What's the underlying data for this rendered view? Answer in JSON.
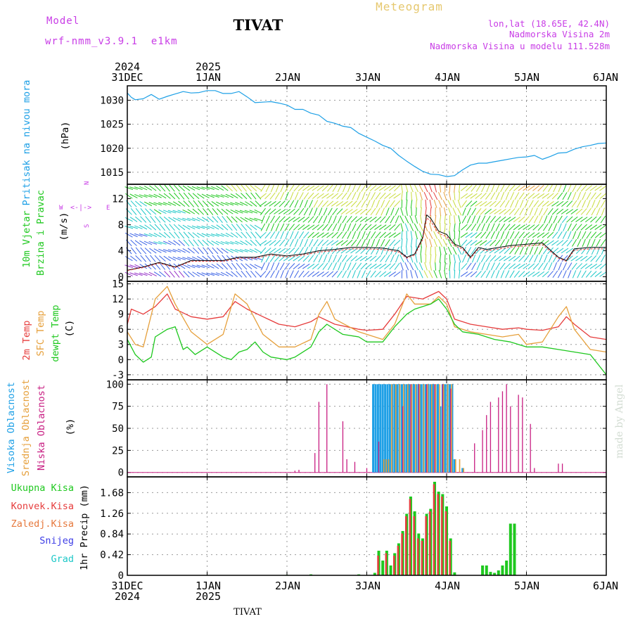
{
  "header": {
    "model_label": "Model",
    "model_name": "wrf-nmm_v3.9.1  e1km",
    "station": "TIVAT",
    "title": "Meteogram",
    "coords": "lon,lat (18.65E, 42.4N)",
    "altitude": "Nadmorska Visina 2m",
    "model_altitude": "Nadmorska Visina u modelu 111.528m",
    "footer_station": "TIVAT",
    "credit": "made by Angel"
  },
  "time_axis": {
    "ticks": [
      "31DEC",
      "1JAN",
      "2JAN",
      "3JAN",
      "4JAN",
      "5JAN",
      "6JAN"
    ],
    "years": [
      {
        "label": "2024",
        "tick": "31DEC"
      },
      {
        "label": "2025",
        "tick": "1JAN"
      }
    ]
  },
  "colors": {
    "pressure": "#1ea0e6",
    "temp2m": "#e63c3c",
    "sfc_temp": "#e6a03c",
    "dewpt": "#1ec81e",
    "high_cloud": "#1ea0e6",
    "mid_cloud": "#e6a03c",
    "low_cloud": "#c81e82",
    "total_precip": "#1ec81e",
    "conv_precip": "#e63c3c",
    "snow": "#3c3ce6",
    "hail": "#1ec8c8",
    "axis_label_purple": "#c83ce6",
    "title_gold": "#e6c86e"
  },
  "chart_data": [
    {
      "type": "line",
      "panel": "pressure",
      "ylabel": [
        "Pritisak na nivou mora",
        "(hPa)"
      ],
      "yticks": [
        1015,
        1020,
        1025,
        1030
      ],
      "ylim": [
        1012.5,
        1033
      ],
      "grid": true,
      "series": [
        {
          "name": "Pritisak na nivou mora",
          "x": [
            0,
            0.05,
            0.1,
            0.2,
            0.3,
            0.4,
            0.5,
            0.6,
            0.7,
            0.8,
            0.9,
            1.0,
            1.1,
            1.2,
            1.3,
            1.4,
            1.5,
            1.6,
            1.7,
            1.8,
            1.9,
            2.0,
            2.1,
            2.2,
            2.3,
            2.4,
            2.5,
            2.6,
            2.7,
            2.8,
            2.9,
            3.0,
            3.1,
            3.2,
            3.3,
            3.4,
            3.5,
            3.6,
            3.7,
            3.8,
            3.9,
            4.0,
            4.1,
            4.2,
            4.3,
            4.4,
            4.5,
            4.6,
            4.7,
            4.8,
            4.9,
            5.0,
            5.1,
            5.2,
            5.3,
            5.4,
            5.5,
            5.6,
            5.7,
            5.8,
            5.9,
            6.0
          ],
          "values": [
            1031.5,
            1030.6,
            1030.1,
            1030.3,
            1031.2,
            1030.2,
            1030.8,
            1031.3,
            1031.8,
            1031.5,
            1031.6,
            1032.0,
            1032.0,
            1031.4,
            1031.4,
            1031.8,
            1030.7,
            1029.5,
            1029.6,
            1029.7,
            1029.4,
            1029.0,
            1028.1,
            1028.1,
            1027.3,
            1026.9,
            1025.6,
            1025.2,
            1024.6,
            1024.3,
            1023.1,
            1022.3,
            1021.5,
            1020.6,
            1020.0,
            1018.5,
            1017.3,
            1016.2,
            1015.2,
            1014.6,
            1014.5,
            1014.1,
            1014.3,
            1015.5,
            1016.5,
            1016.9,
            1016.9,
            1017.2,
            1017.5,
            1017.8,
            1018.1,
            1018.2,
            1018.5,
            1017.7,
            1018.3,
            1019.0,
            1019.1,
            1019.8,
            1020.3,
            1020.6,
            1021.0,
            1021.1
          ]
        }
      ]
    },
    {
      "type": "line",
      "panel": "wind",
      "ylabel": [
        "10m Vjetar",
        "Brzina i Pravac",
        "(m/s)"
      ],
      "legend_rose": {
        "n": "N",
        "s": "S",
        "e": "E",
        "w": "W"
      },
      "yticks": [
        0,
        4,
        8,
        12
      ],
      "ylim": [
        -0.7,
        14.2
      ],
      "series": [
        {
          "name": "brzina",
          "x": [
            0,
            0.2,
            0.4,
            0.6,
            0.8,
            1.0,
            1.2,
            1.4,
            1.6,
            1.8,
            2.0,
            2.2,
            2.4,
            2.6,
            2.8,
            3.0,
            3.2,
            3.4,
            3.5,
            3.6,
            3.7,
            3.75,
            3.8,
            3.9,
            4.0,
            4.1,
            4.2,
            4.3,
            4.4,
            4.5,
            4.6,
            4.8,
            5.0,
            5.2,
            5.4,
            5.5,
            5.6,
            5.8,
            6.0
          ],
          "values": [
            1.0,
            1.5,
            2.2,
            1.5,
            2.5,
            2.5,
            2.5,
            3.0,
            3.0,
            3.5,
            3.2,
            3.5,
            4.0,
            4.2,
            4.5,
            4.5,
            4.4,
            4.0,
            3.0,
            3.5,
            6.0,
            9.5,
            9.0,
            7.0,
            6.5,
            5.0,
            4.5,
            3.0,
            4.5,
            4.2,
            4.4,
            4.8,
            5.0,
            5.2,
            3.0,
            2.5,
            4.3,
            4.5,
            4.5
          ]
        }
      ]
    },
    {
      "type": "line",
      "panel": "temperature",
      "ylabel": [
        "2m Temp",
        "SFC Temp",
        "dewpt Temp",
        "(C)"
      ],
      "yticks": [
        -3,
        0,
        3,
        6,
        9,
        12,
        15
      ],
      "ylim": [
        -4,
        15.5
      ],
      "grid": true,
      "series": [
        {
          "name": "2m Temp",
          "x": [
            0,
            0.05,
            0.2,
            0.35,
            0.5,
            0.6,
            0.8,
            1.0,
            1.2,
            1.35,
            1.5,
            1.7,
            1.9,
            2.1,
            2.3,
            2.4,
            2.6,
            2.9,
            3.0,
            3.2,
            3.35,
            3.5,
            3.7,
            3.9,
            4.0,
            4.1,
            4.3,
            4.5,
            4.7,
            4.9,
            5.0,
            5.2,
            5.4,
            5.5,
            5.6,
            5.8,
            6.0
          ],
          "values": [
            7.0,
            10.0,
            9.0,
            10.5,
            13.0,
            10.0,
            8.5,
            8.0,
            8.5,
            11.5,
            10.0,
            8.5,
            7.0,
            6.5,
            7.5,
            8.5,
            7.0,
            6.0,
            5.8,
            6.0,
            9.0,
            12.5,
            12.0,
            13.5,
            12.0,
            8.0,
            7.0,
            6.5,
            6.0,
            6.3,
            6.0,
            5.8,
            6.5,
            8.5,
            7.0,
            4.5,
            4.0
          ]
        },
        {
          "name": "SFC Temp",
          "x": [
            0,
            0.1,
            0.2,
            0.35,
            0.5,
            0.6,
            0.8,
            1.0,
            1.2,
            1.35,
            1.5,
            1.7,
            1.9,
            2.1,
            2.3,
            2.4,
            2.5,
            2.6,
            2.9,
            3.0,
            3.2,
            3.35,
            3.5,
            3.6,
            3.8,
            3.9,
            4.0,
            4.1,
            4.3,
            4.5,
            4.7,
            4.9,
            5.0,
            5.2,
            5.4,
            5.5,
            5.6,
            5.8,
            6.0
          ],
          "values": [
            5.5,
            3.0,
            2.5,
            12.0,
            14.5,
            11.0,
            5.5,
            3.0,
            5.0,
            13.0,
            11.0,
            5.0,
            2.5,
            2.5,
            4.0,
            9.0,
            11.5,
            8.0,
            5.5,
            5.0,
            4.0,
            7.0,
            13.0,
            11.0,
            11.0,
            12.5,
            11.0,
            6.5,
            5.5,
            5.0,
            4.5,
            5.0,
            3.0,
            3.5,
            8.5,
            10.5,
            6.0,
            2.0,
            1.5
          ]
        },
        {
          "name": "dewpt Temp",
          "x": [
            0,
            0.1,
            0.2,
            0.3,
            0.35,
            0.5,
            0.6,
            0.7,
            0.75,
            0.85,
            1.0,
            1.2,
            1.3,
            1.4,
            1.5,
            1.6,
            1.7,
            1.8,
            2.0,
            2.1,
            2.3,
            2.4,
            2.5,
            2.7,
            2.9,
            3.0,
            3.2,
            3.35,
            3.5,
            3.6,
            3.8,
            3.9,
            4.0,
            4.1,
            4.2,
            4.4,
            4.6,
            4.8,
            5.0,
            5.2,
            5.4,
            5.6,
            5.8,
            5.9,
            6.0
          ],
          "values": [
            4.0,
            1.0,
            -0.5,
            0.5,
            4.5,
            6.0,
            6.5,
            2.0,
            2.5,
            1.0,
            2.5,
            0.5,
            0.0,
            1.5,
            2.0,
            3.5,
            1.5,
            0.5,
            0.0,
            0.5,
            2.5,
            5.5,
            7.0,
            5.0,
            4.5,
            3.5,
            3.5,
            6.5,
            9.0,
            10.0,
            11.0,
            12.0,
            10.0,
            7.0,
            5.5,
            5.0,
            4.0,
            3.5,
            2.5,
            2.5,
            2.0,
            1.5,
            1.0,
            -1.0,
            -3.0
          ]
        }
      ]
    },
    {
      "type": "bar",
      "panel": "clouds",
      "ylabel": [
        "Visoka Oblacnost",
        "Srednja Oblacnost",
        "Niska Oblacnost",
        "(%)"
      ],
      "yticks": [
        0,
        25,
        50,
        75,
        100
      ],
      "ylim": [
        -5,
        105
      ],
      "grid": true,
      "series": [
        {
          "name": "Visoka Oblacnost",
          "x": [
            3.08,
            3.11,
            3.14,
            3.17,
            3.2,
            3.23,
            3.26,
            3.29,
            3.32,
            3.35,
            3.38,
            3.41,
            3.44,
            3.47,
            3.5,
            3.53,
            3.56,
            3.59,
            3.62,
            3.65,
            3.68,
            3.71,
            3.74,
            3.77,
            3.8,
            3.83,
            3.86,
            3.89,
            3.92,
            3.95,
            3.98,
            4.01,
            4.04,
            4.07,
            4.1,
            4.2
          ],
          "values": [
            100,
            100,
            100,
            100,
            100,
            100,
            100,
            100,
            100,
            100,
            100,
            100,
            100,
            100,
            100,
            100,
            100,
            100,
            100,
            100,
            100,
            100,
            100,
            100,
            100,
            100,
            100,
            100,
            75,
            100,
            100,
            100,
            100,
            100,
            15,
            5
          ]
        },
        {
          "name": "Srednja Oblacnost",
          "x": [
            3.2,
            3.23,
            3.26,
            3.3,
            3.35,
            3.4,
            3.45,
            3.5,
            3.55,
            3.6,
            3.65,
            3.7,
            3.75,
            3.8,
            3.85,
            3.9,
            3.95,
            4.0,
            4.05,
            4.1,
            4.15,
            4.2
          ],
          "values": [
            15,
            15,
            15,
            100,
            100,
            100,
            100,
            100,
            100,
            100,
            100,
            100,
            100,
            100,
            100,
            100,
            100,
            100,
            100,
            15,
            15,
            5
          ]
        },
        {
          "name": "Niska Oblacnost",
          "x": [
            2.1,
            2.15,
            2.35,
            2.4,
            2.5,
            2.7,
            2.75,
            2.85,
            3.0,
            3.15,
            3.45,
            3.55,
            3.65,
            3.75,
            3.85,
            3.95,
            4.05,
            4.35,
            4.45,
            4.5,
            4.55,
            4.65,
            4.7,
            4.75,
            4.8,
            4.9,
            4.95,
            5.05,
            5.1,
            5.4,
            5.45
          ],
          "values": [
            2,
            3,
            22,
            80,
            100,
            58,
            15,
            12,
            5,
            35,
            75,
            100,
            100,
            100,
            100,
            100,
            95,
            33,
            48,
            65,
            80,
            85,
            92,
            100,
            75,
            88,
            85,
            55,
            5,
            10,
            10
          ]
        }
      ]
    },
    {
      "type": "bar",
      "panel": "precipitation",
      "ylabel": [
        "1hr Precip (mm)"
      ],
      "legend": [
        "Ukupna Kisa",
        "Konvek.Kisa",
        "Zaledj.Kisa",
        "Snijeg",
        "Grad"
      ],
      "yticks": [
        0,
        0.42,
        0.84,
        1.26,
        1.68
      ],
      "ylim": [
        0,
        2.0
      ],
      "grid": true,
      "series": [
        {
          "name": "Ukupna Kisa",
          "x": [
            2.0,
            2.3,
            2.9,
            3.1,
            3.15,
            3.2,
            3.25,
            3.3,
            3.35,
            3.4,
            3.45,
            3.5,
            3.55,
            3.6,
            3.65,
            3.7,
            3.75,
            3.8,
            3.85,
            3.9,
            3.95,
            4.0,
            4.05,
            4.1,
            4.45,
            4.5,
            4.55,
            4.6,
            4.65,
            4.7,
            4.75,
            4.8,
            4.85
          ],
          "values": [
            0.01,
            0.02,
            0.02,
            0.05,
            0.5,
            0.3,
            0.5,
            0.2,
            0.45,
            0.65,
            0.9,
            1.25,
            1.6,
            1.3,
            0.85,
            0.75,
            1.25,
            1.35,
            1.9,
            1.7,
            1.65,
            1.4,
            0.75,
            0.06,
            0.2,
            0.2,
            0.07,
            0.05,
            0.1,
            0.2,
            0.3,
            1.05,
            1.05
          ]
        },
        {
          "name": "Konvek.Kisa",
          "x": [
            3.15,
            3.25,
            3.35,
            3.4,
            3.45,
            3.5,
            3.55,
            3.6,
            3.65,
            3.7,
            3.75,
            3.8,
            3.85,
            3.9,
            3.95,
            4.0,
            4.05
          ],
          "values": [
            0.4,
            0.45,
            0.4,
            0.6,
            0.85,
            1.2,
            1.55,
            1.2,
            0.75,
            0.7,
            1.2,
            1.3,
            1.85,
            1.65,
            1.6,
            1.3,
            0.7
          ]
        }
      ]
    }
  ]
}
